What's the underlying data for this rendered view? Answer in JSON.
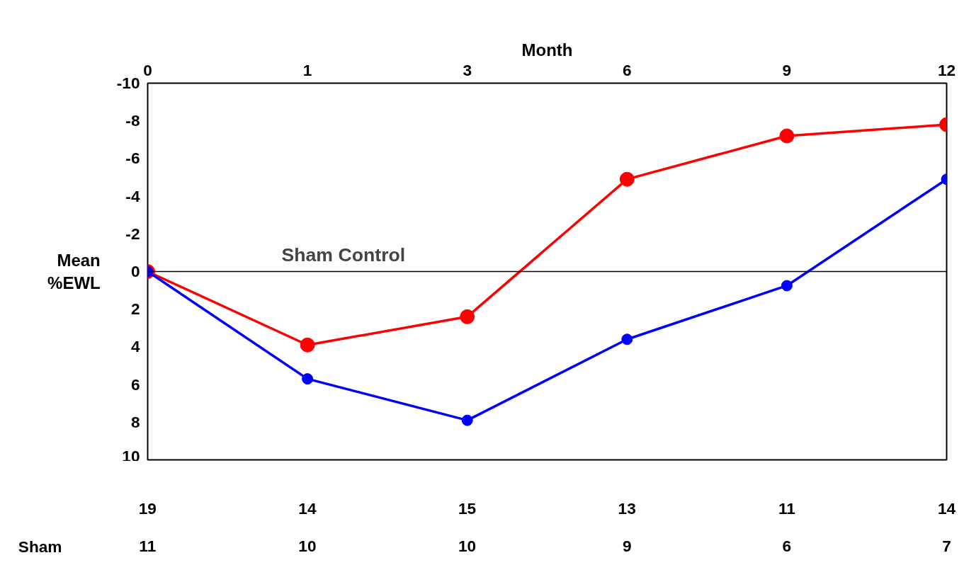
{
  "chart_data": {
    "type": "line",
    "xlabel": "Month",
    "ylabel": "Mean %EWL",
    "categories": [
      "0",
      "1",
      "3",
      "6",
      "9",
      "12"
    ],
    "ylim": [
      10,
      -10
    ],
    "yticks": [
      -10,
      -8,
      -6,
      -4,
      -2,
      0,
      2,
      4,
      6,
      8,
      10
    ],
    "series": [
      {
        "name": "Sham Control",
        "color": "#ff0000",
        "values": [
          0,
          3.9,
          2.4,
          -4.9,
          -7.2,
          -7.8
        ]
      },
      {
        "color": "#0000ff",
        "values": [
          0,
          5.7,
          7.9,
          3.6,
          0.75,
          -4.9
        ]
      }
    ],
    "ref_lines": [
      {
        "axis": "y",
        "value": 0,
        "color": "#000000"
      }
    ],
    "marker": "circle",
    "line_style": "solid",
    "grid": false,
    "annotations": [
      "19",
      "14",
      "15",
      "13",
      "11",
      "14",
      "Sham",
      "11",
      "10",
      "10",
      "9",
      "6",
      "7"
    ]
  }
}
